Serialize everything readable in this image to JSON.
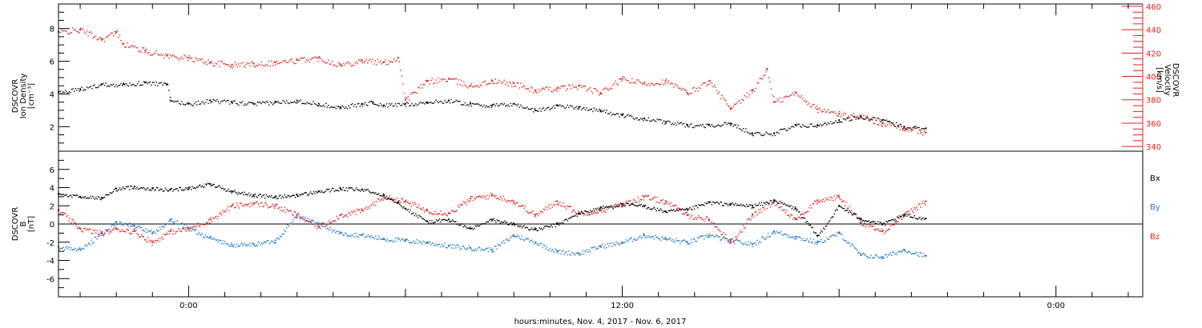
{
  "figure": {
    "x_axis_title": "hours:minutes, Nov.  4, 2017 - Nov.  6, 2017",
    "x_tick_labels": [
      "0:00",
      "12:00",
      "0:00"
    ]
  },
  "chart_data": [
    {
      "type": "scatter",
      "title": "",
      "ylabel_left": [
        "DSCOVR",
        "Ion Density",
        "[cm⁻³]"
      ],
      "ylabel_right": [
        "DSCOVR",
        "Velocity",
        "[km/s]"
      ],
      "x_unit": "hours since Nov. 4, 2017 0:00",
      "xlim": [
        -3.6,
        26.4
      ],
      "ylim_left": [
        0.5,
        9.5
      ],
      "ylim_right": [
        336,
        462
      ],
      "yticks_left": [
        2,
        4,
        6,
        8
      ],
      "yticks_right": [
        340,
        360,
        380,
        400,
        420,
        440,
        460
      ],
      "colors": {
        "density": "#000000",
        "velocity": "#e0201b"
      },
      "series": [
        {
          "name": "",
          "axis": "left",
          "color": "#000000",
          "x": [
            -3.6,
            -3.0,
            -2.4,
            -1.8,
            -1.2,
            -0.6,
            -0.5,
            0.0,
            0.6,
            1.2,
            1.8,
            2.4,
            3.0,
            3.6,
            4.2,
            4.8,
            5.1,
            5.4,
            6.0,
            6.6,
            7.2,
            7.8,
            8.4,
            9.0,
            9.6,
            10.2,
            10.8,
            11.4,
            12.0,
            12.6,
            13.2,
            13.8,
            14.4,
            15.0,
            15.6,
            16.2,
            16.8,
            17.4,
            18.0,
            18.6,
            19.2,
            19.8,
            20.4
          ],
          "y": [
            4.1,
            4.3,
            4.6,
            4.6,
            4.7,
            4.6,
            3.6,
            3.4,
            3.6,
            3.5,
            3.4,
            3.5,
            3.6,
            3.4,
            3.2,
            3.4,
            3.5,
            3.3,
            3.4,
            3.5,
            3.6,
            3.4,
            3.3,
            3.4,
            3.0,
            3.3,
            3.2,
            3.0,
            2.7,
            2.5,
            2.3,
            2.1,
            2.1,
            2.2,
            1.6,
            1.6,
            2.1,
            2.1,
            2.4,
            2.6,
            2.4,
            2.0,
            1.9
          ]
        },
        {
          "name": "",
          "axis": "right",
          "color": "#e0201b",
          "x": [
            -3.6,
            -3.0,
            -2.4,
            -2.0,
            -1.8,
            -1.2,
            -0.6,
            0.0,
            0.6,
            1.2,
            1.8,
            2.4,
            3.0,
            3.6,
            4.2,
            4.8,
            5.4,
            5.8,
            6.0,
            6.6,
            7.2,
            7.8,
            8.4,
            9.0,
            9.6,
            10.2,
            10.8,
            11.4,
            12.0,
            12.6,
            13.2,
            13.8,
            14.4,
            15.0,
            15.6,
            16.0,
            16.2,
            16.8,
            17.4,
            18.0,
            18.6,
            19.2,
            19.8,
            20.4
          ],
          "y": [
            438,
            440,
            432,
            438,
            428,
            422,
            418,
            416,
            412,
            410,
            411,
            412,
            414,
            416,
            410,
            414,
            412,
            416,
            380,
            396,
            398,
            392,
            396,
            394,
            388,
            390,
            392,
            386,
            398,
            394,
            396,
            386,
            396,
            372,
            388,
            406,
            378,
            386,
            372,
            368,
            366,
            360,
            356,
            352
          ]
        }
      ]
    },
    {
      "type": "scatter",
      "title": "",
      "ylabel_left": [
        "DSCOVR",
        "B",
        "[nT]"
      ],
      "legend": [
        "Bx",
        "By",
        "Bz"
      ],
      "legend_placement": "right",
      "x_unit": "hours since Nov. 4, 2017 0:00",
      "xlim": [
        -3.6,
        26.4
      ],
      "ylim": [
        -8,
        8
      ],
      "yticks": [
        -6,
        -4,
        -2,
        0,
        2,
        4,
        6
      ],
      "zero_line": true,
      "colors": {
        "Bx": "#000000",
        "By": "#1f78c8",
        "Bz": "#e0201b"
      },
      "series": [
        {
          "name": "Bx",
          "color": "#000000",
          "x": [
            -3.6,
            -3.0,
            -2.4,
            -2.0,
            -1.5,
            -1.0,
            -0.5,
            0.0,
            0.6,
            1.2,
            1.8,
            2.4,
            3.0,
            3.6,
            4.2,
            4.8,
            5.4,
            5.8,
            6.0,
            6.6,
            7.2,
            7.8,
            8.4,
            9.0,
            9.6,
            10.2,
            10.8,
            11.4,
            12.0,
            12.6,
            13.2,
            13.8,
            14.4,
            15.0,
            15.6,
            16.2,
            16.8,
            17.4,
            18.0,
            18.6,
            19.2,
            19.8,
            20.4
          ],
          "y": [
            3.3,
            3.0,
            2.9,
            3.9,
            4.1,
            3.9,
            3.8,
            4.0,
            4.4,
            3.6,
            3.2,
            3.0,
            3.2,
            3.6,
            3.9,
            3.8,
            3.2,
            2.4,
            1.7,
            0.3,
            0.5,
            -0.5,
            0.5,
            0.0,
            -0.6,
            0.0,
            1.2,
            1.8,
            2.2,
            2.0,
            1.4,
            1.6,
            2.4,
            2.2,
            2.0,
            2.6,
            1.7,
            -1.3,
            2.0,
            0.6,
            0.0,
            1.0,
            0.6
          ]
        },
        {
          "name": "By",
          "color": "#1f78c8",
          "x": [
            -3.6,
            -3.0,
            -2.4,
            -2.0,
            -1.5,
            -1.0,
            -0.5,
            0.0,
            0.6,
            1.2,
            1.8,
            2.4,
            3.0,
            3.6,
            4.2,
            4.8,
            5.4,
            6.0,
            6.6,
            7.2,
            7.8,
            8.4,
            9.0,
            9.6,
            10.2,
            10.8,
            11.4,
            12.0,
            12.6,
            13.2,
            13.8,
            14.4,
            15.0,
            15.6,
            16.2,
            16.8,
            17.4,
            18.0,
            18.6,
            19.2,
            19.8,
            20.4
          ],
          "y": [
            -2.5,
            -2.8,
            -1.0,
            0.2,
            -0.2,
            -1.0,
            0.5,
            -0.5,
            -1.5,
            -2.3,
            -2.2,
            -1.8,
            1.0,
            0.0,
            -1.0,
            -1.2,
            -1.6,
            -1.8,
            -2.0,
            -2.4,
            -2.6,
            -2.8,
            -1.2,
            -2.0,
            -3.0,
            -3.2,
            -2.4,
            -2.0,
            -1.2,
            -1.6,
            -2.0,
            -1.2,
            -1.8,
            -2.2,
            -0.8,
            -1.4,
            -2.0,
            -1.0,
            -3.4,
            -3.6,
            -2.8,
            -3.5
          ]
        },
        {
          "name": "Bz",
          "color": "#e0201b",
          "x": [
            -3.6,
            -3.0,
            -2.4,
            -2.0,
            -1.5,
            -1.0,
            -0.5,
            0.0,
            0.6,
            1.2,
            1.8,
            2.4,
            3.0,
            3.6,
            4.2,
            4.8,
            5.4,
            6.0,
            6.6,
            7.2,
            7.8,
            8.4,
            9.0,
            9.6,
            10.2,
            10.8,
            11.4,
            12.0,
            12.6,
            13.2,
            13.8,
            14.4,
            15.0,
            15.6,
            16.2,
            16.8,
            17.4,
            18.0,
            18.6,
            19.2,
            19.8,
            20.4
          ],
          "y": [
            1.5,
            -0.5,
            -1.0,
            -0.5,
            -0.8,
            -2.0,
            -0.8,
            -0.5,
            0.5,
            2.0,
            2.3,
            2.0,
            1.0,
            -0.3,
            1.0,
            1.5,
            3.0,
            2.5,
            1.5,
            1.2,
            2.8,
            3.2,
            2.5,
            1.0,
            2.5,
            1.2,
            1.5,
            2.2,
            3.0,
            2.5,
            1.0,
            0.5,
            -2.0,
            1.0,
            2.5,
            0.5,
            2.6,
            3.0,
            0.2,
            -0.8,
            1.0,
            2.5
          ]
        }
      ]
    }
  ]
}
